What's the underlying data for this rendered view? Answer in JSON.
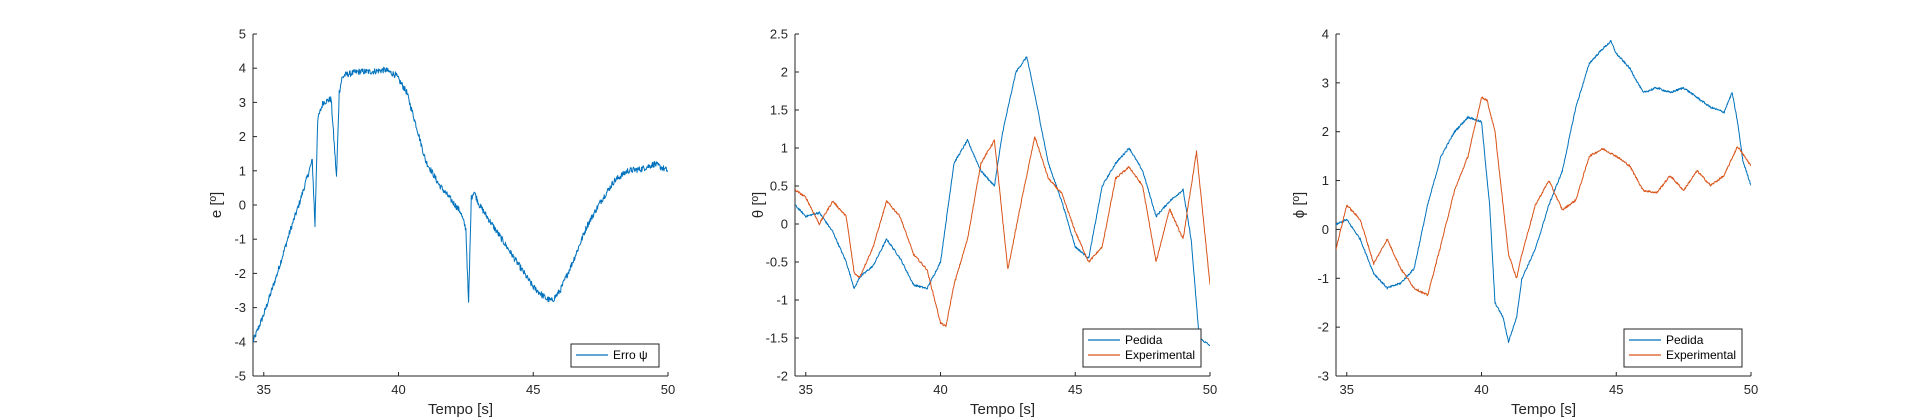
{
  "colors": {
    "blue": "#0072BD",
    "orange": "#D95319",
    "axis": "#262626"
  },
  "chart_data": [
    {
      "type": "line",
      "title": "",
      "xlabel": "Tempo [s]",
      "ylabel": "e [º]",
      "xlim": [
        34.6,
        50
      ],
      "ylim": [
        -5,
        5
      ],
      "xticks": [
        35,
        40,
        45,
        50
      ],
      "yticks": [
        -5,
        -4,
        -3,
        -2,
        -1,
        0,
        1,
        2,
        3,
        4,
        5
      ],
      "xtick_labels": [
        "35",
        "40",
        "45",
        "50"
      ],
      "ytick_labels": [
        "-5",
        "-4",
        "-3",
        "-2",
        "-1",
        "0",
        "1",
        "2",
        "3",
        "4",
        "5"
      ],
      "legend_position": "bottom-right",
      "series": [
        {
          "name": "Erro ψ",
          "color": "#0072BD",
          "x": [
            34.6,
            35.0,
            35.5,
            36.0,
            36.3,
            36.8,
            36.9,
            37.0,
            37.2,
            37.5,
            37.7,
            37.8,
            37.9,
            38.0,
            38.5,
            39.0,
            39.5,
            39.9,
            40.3,
            40.7,
            41.0,
            41.5,
            42.0,
            42.3,
            42.5,
            42.6,
            42.7,
            42.8,
            43.0,
            43.5,
            44.0,
            44.5,
            45.0,
            45.5,
            45.7,
            46.0,
            46.5,
            47.0,
            47.5,
            48.0,
            48.5,
            49.0,
            49.5,
            50.0
          ],
          "y": [
            -4.0,
            -3.2,
            -2.0,
            -0.7,
            0.0,
            1.3,
            -0.6,
            2.5,
            3.0,
            3.1,
            0.8,
            3.3,
            3.7,
            3.8,
            3.9,
            3.9,
            3.95,
            3.8,
            3.3,
            2.2,
            1.3,
            0.6,
            0.1,
            -0.2,
            -0.7,
            -2.9,
            0.2,
            0.4,
            0.0,
            -0.6,
            -1.2,
            -1.8,
            -2.4,
            -2.75,
            -2.8,
            -2.5,
            -1.6,
            -0.6,
            0.1,
            0.7,
            1.0,
            1.05,
            1.2,
            1.0
          ]
        }
      ]
    },
    {
      "type": "line",
      "title": "",
      "xlabel": "Tempo [s]",
      "ylabel": "θ [º]",
      "xlim": [
        34.6,
        50
      ],
      "ylim": [
        -2,
        2.5
      ],
      "xticks": [
        35,
        40,
        45,
        50
      ],
      "yticks": [
        -2,
        -1.5,
        -1,
        -0.5,
        0,
        0.5,
        1,
        1.5,
        2,
        2.5
      ],
      "xtick_labels": [
        "35",
        "40",
        "45",
        "50"
      ],
      "ytick_labels": [
        "-2",
        "-1.5",
        "-1",
        "-0.5",
        "0",
        "0.5",
        "1",
        "1.5",
        "2",
        "2.5"
      ],
      "legend_position": "bottom-right",
      "series": [
        {
          "name": "Pedida",
          "color": "#0072BD",
          "x": [
            34.6,
            35.0,
            35.5,
            36.0,
            36.5,
            36.8,
            37.0,
            37.5,
            38.0,
            38.5,
            39.0,
            39.5,
            40.0,
            40.5,
            41.0,
            41.5,
            42.0,
            42.3,
            42.8,
            43.2,
            43.5,
            44.0,
            44.5,
            45.0,
            45.5,
            46.0,
            46.5,
            47.0,
            47.5,
            48.0,
            48.5,
            49.0,
            49.3,
            49.6,
            49.8,
            50.0
          ],
          "y": [
            0.25,
            0.1,
            0.15,
            -0.1,
            -0.5,
            -0.85,
            -0.7,
            -0.55,
            -0.2,
            -0.45,
            -0.8,
            -0.85,
            -0.5,
            0.8,
            1.1,
            0.7,
            0.5,
            1.2,
            2.0,
            2.2,
            1.7,
            0.8,
            0.3,
            -0.3,
            -0.45,
            0.5,
            0.8,
            1.0,
            0.7,
            0.1,
            0.3,
            0.45,
            -0.2,
            -1.5,
            -1.55,
            -1.6
          ]
        },
        {
          "name": "Experimental",
          "color": "#D95319",
          "x": [
            34.6,
            35.0,
            35.5,
            36.0,
            36.5,
            36.8,
            37.0,
            37.5,
            38.0,
            38.5,
            39.0,
            39.5,
            40.0,
            40.2,
            40.5,
            41.0,
            41.5,
            42.0,
            42.5,
            43.0,
            43.5,
            44.0,
            44.5,
            45.0,
            45.5,
            46.0,
            46.5,
            47.0,
            47.5,
            48.0,
            48.5,
            49.0,
            49.5,
            50.0
          ],
          "y": [
            0.45,
            0.35,
            0.0,
            0.3,
            0.1,
            -0.65,
            -0.7,
            -0.3,
            0.3,
            0.1,
            -0.4,
            -0.6,
            -1.3,
            -1.35,
            -0.8,
            -0.2,
            0.8,
            1.1,
            -0.6,
            0.3,
            1.15,
            0.6,
            0.4,
            -0.1,
            -0.5,
            -0.3,
            0.6,
            0.75,
            0.5,
            -0.5,
            0.2,
            -0.2,
            0.95,
            -0.8
          ]
        }
      ]
    },
    {
      "type": "line",
      "title": "",
      "xlabel": "Tempo [s]",
      "ylabel": "ϕ [º]",
      "xlim": [
        34.6,
        50
      ],
      "ylim": [
        -3,
        4
      ],
      "xticks": [
        35,
        40,
        45,
        50
      ],
      "yticks": [
        -3,
        -2,
        -1,
        0,
        1,
        2,
        3,
        4
      ],
      "xtick_labels": [
        "35",
        "40",
        "45",
        "50"
      ],
      "ytick_labels": [
        "-3",
        "-2",
        "-1",
        "0",
        "1",
        "2",
        "3",
        "4"
      ],
      "legend_position": "bottom-right",
      "series": [
        {
          "name": "Pedida",
          "color": "#0072BD",
          "x": [
            34.6,
            35.0,
            35.5,
            36.0,
            36.5,
            37.0,
            37.5,
            38.0,
            38.5,
            39.0,
            39.5,
            40.0,
            40.3,
            40.5,
            40.8,
            41.0,
            41.3,
            41.5,
            42.0,
            42.5,
            43.0,
            43.5,
            44.0,
            44.5,
            44.8,
            45.0,
            45.5,
            46.0,
            46.5,
            47.0,
            47.5,
            48.0,
            48.5,
            49.0,
            49.3,
            49.5,
            49.7,
            50.0
          ],
          "y": [
            0.1,
            0.2,
            -0.2,
            -0.9,
            -1.2,
            -1.1,
            -0.8,
            0.5,
            1.5,
            2.0,
            2.3,
            2.2,
            0.5,
            -1.5,
            -1.8,
            -2.3,
            -1.8,
            -1.0,
            -0.4,
            0.5,
            1.2,
            2.5,
            3.4,
            3.7,
            3.85,
            3.6,
            3.3,
            2.8,
            2.9,
            2.8,
            2.9,
            2.7,
            2.5,
            2.4,
            2.8,
            2.2,
            1.4,
            0.9
          ]
        },
        {
          "name": "Experimental",
          "color": "#D95319",
          "x": [
            34.6,
            35.0,
            35.5,
            36.0,
            36.5,
            37.0,
            37.5,
            38.0,
            38.5,
            39.0,
            39.5,
            40.0,
            40.2,
            40.5,
            40.8,
            41.0,
            41.3,
            41.5,
            42.0,
            42.5,
            43.0,
            43.5,
            44.0,
            44.5,
            45.0,
            45.5,
            46.0,
            46.5,
            47.0,
            47.5,
            48.0,
            48.5,
            49.0,
            49.5,
            50.0
          ],
          "y": [
            -0.4,
            0.5,
            0.2,
            -0.7,
            -0.2,
            -0.8,
            -1.2,
            -1.35,
            -0.3,
            0.8,
            1.5,
            2.7,
            2.65,
            2.0,
            0.5,
            -0.5,
            -1.0,
            -0.5,
            0.5,
            1.0,
            0.4,
            0.6,
            1.5,
            1.65,
            1.5,
            1.3,
            0.8,
            0.75,
            1.1,
            0.8,
            1.2,
            0.9,
            1.1,
            1.7,
            1.3
          ]
        }
      ]
    }
  ]
}
